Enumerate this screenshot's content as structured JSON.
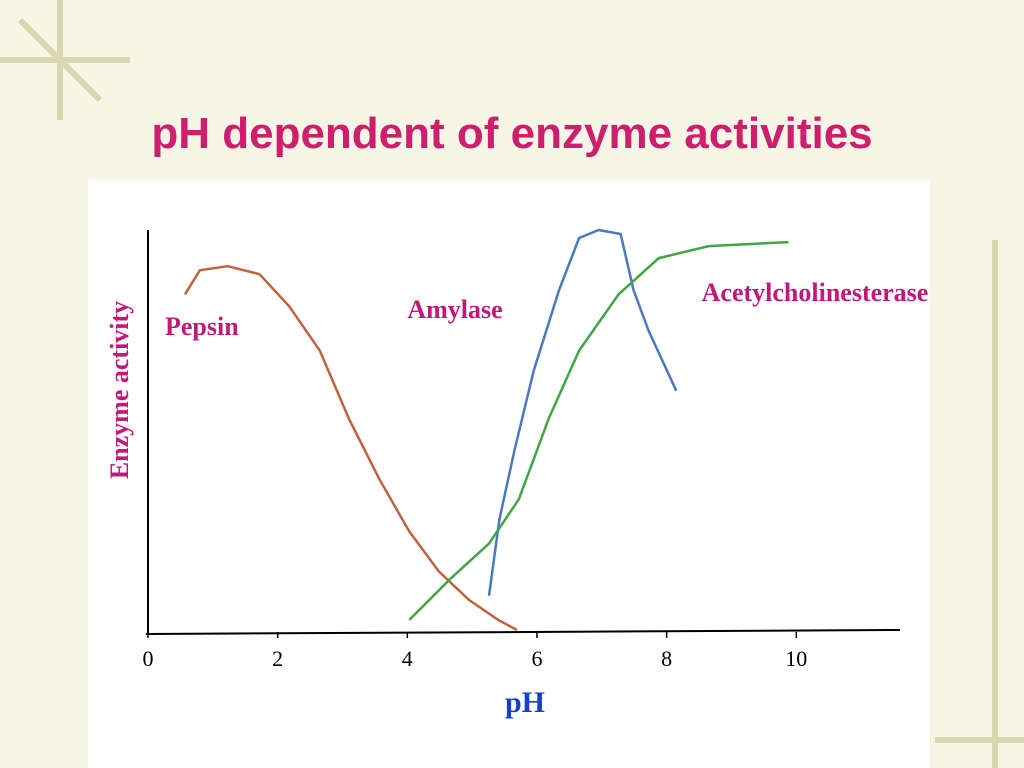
{
  "chart_data": {
    "type": "line",
    "title": "pH dependent of enzyme activities",
    "x_label": "pH",
    "y_label": "Enzyme activity",
    "xlim": [
      0,
      11.6
    ],
    "xticks": [
      0,
      2,
      4,
      6,
      8,
      10
    ],
    "ylim": [
      0,
      1
    ],
    "series": [
      {
        "name": "Pepsin",
        "color": "#c0623e",
        "x": [
          0.57,
          0.8,
          1.23,
          1.72,
          2.18,
          2.65,
          3.1,
          3.57,
          4.03,
          4.49,
          4.95,
          5.4,
          5.69
        ],
        "values": [
          0.84,
          0.9,
          0.91,
          0.89,
          0.81,
          0.7,
          0.53,
          0.38,
          0.25,
          0.15,
          0.08,
          0.03,
          0.005
        ]
      },
      {
        "name": "Amylase",
        "color": "#4a78c2",
        "x": [
          5.26,
          5.42,
          5.65,
          5.95,
          6.34,
          6.65,
          6.95,
          7.29,
          7.49,
          7.72,
          8.15
        ],
        "values": [
          0.09,
          0.28,
          0.45,
          0.65,
          0.85,
          0.98,
          1.0,
          0.99,
          0.85,
          0.75,
          0.6
        ]
      },
      {
        "name": "Acetylcholinesterase",
        "color": "#3fa548",
        "x": [
          4.03,
          4.65,
          5.26,
          5.72,
          6.18,
          6.65,
          7.26,
          7.88,
          8.65,
          9.88
        ],
        "values": [
          0.03,
          0.13,
          0.22,
          0.33,
          0.53,
          0.7,
          0.84,
          0.93,
          0.96,
          0.97
        ]
      }
    ]
  }
}
